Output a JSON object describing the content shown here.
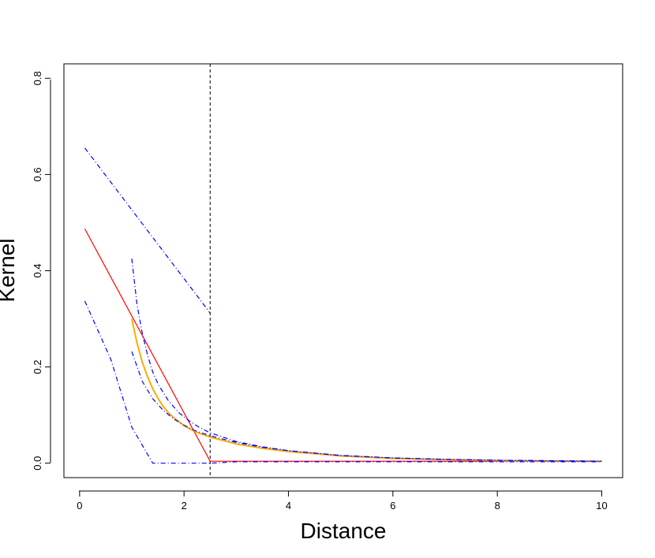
{
  "chart_data": {
    "type": "line",
    "title": "",
    "xlabel": "Distance",
    "ylabel": "Kernel",
    "xlim": [
      -0.3,
      10.4
    ],
    "ylim": [
      -0.03,
      0.83
    ],
    "xticks": [
      0,
      2,
      4,
      6,
      8,
      10
    ],
    "yticks": [
      0.0,
      0.2,
      0.4,
      0.6,
      0.8
    ],
    "xtick_labels": [
      "0",
      "2",
      "4",
      "6",
      "8",
      "10"
    ],
    "ytick_labels": [
      "0.0",
      "0.2",
      "0.4",
      "0.6",
      "0.8"
    ],
    "grid": false,
    "legend": "none",
    "vline": {
      "x": 2.5,
      "style": "dashed",
      "color": "#000000"
    },
    "series": [
      {
        "style": "solid",
        "color": "#ff0000",
        "x": [
          0.1,
          2.5,
          2.5,
          3,
          4,
          5,
          6,
          7,
          8,
          9,
          10
        ],
        "y": [
          0.487,
          0.004,
          0.004,
          0.004,
          0.004,
          0.004,
          0.004,
          0.004,
          0.004,
          0.004,
          0.004
        ]
      },
      {
        "style": "solid",
        "color": "#ffaa00",
        "x": [
          1.0,
          1.1,
          1.2,
          1.3,
          1.4,
          1.5,
          1.6,
          1.7,
          1.8,
          2.0,
          2.2,
          2.5,
          3,
          3.5,
          4,
          5,
          6,
          7,
          8,
          9,
          10
        ],
        "y": [
          0.3,
          0.25,
          0.21,
          0.18,
          0.155,
          0.135,
          0.118,
          0.105,
          0.095,
          0.078,
          0.066,
          0.054,
          0.04,
          0.031,
          0.024,
          0.015,
          0.01,
          0.0075,
          0.0055,
          0.0045,
          0.004
        ]
      },
      {
        "style": "dashdot",
        "color": "#0000ff",
        "x": [
          0.1,
          2.5
        ],
        "y": [
          0.655,
          0.312
        ]
      },
      {
        "style": "dashdot",
        "color": "#0000ff",
        "x": [
          0.1,
          0.6,
          1.0,
          1.4,
          2.0,
          2.5,
          3,
          4,
          5,
          6,
          7,
          8,
          9,
          10
        ],
        "y": [
          0.337,
          0.215,
          0.075,
          0.0,
          0.0,
          0.0,
          0.003,
          0.003,
          0.003,
          0.003,
          0.003,
          0.003,
          0.003,
          0.003
        ]
      },
      {
        "style": "dashdot",
        "color": "#0000ff",
        "x": [
          1.0,
          1.1,
          1.2,
          1.3,
          1.4,
          1.5,
          1.7,
          1.9,
          2.1,
          2.3,
          2.5,
          3,
          3.5,
          4,
          5,
          6,
          7,
          8,
          9,
          10
        ],
        "y": [
          0.425,
          0.33,
          0.27,
          0.225,
          0.19,
          0.165,
          0.13,
          0.105,
          0.088,
          0.074,
          0.063,
          0.045,
          0.034,
          0.026,
          0.016,
          0.011,
          0.008,
          0.006,
          0.005,
          0.004
        ]
      },
      {
        "style": "dashdot",
        "color": "#0000ff",
        "x": [
          1.0,
          1.2,
          1.4,
          1.6,
          1.8,
          2.0,
          2.2,
          2.5,
          3,
          3.5,
          4,
          5,
          6,
          7,
          8,
          9,
          10
        ],
        "y": [
          0.232,
          0.17,
          0.134,
          0.11,
          0.092,
          0.079,
          0.068,
          0.057,
          0.043,
          0.033,
          0.026,
          0.016,
          0.011,
          0.008,
          0.006,
          0.005,
          0.004
        ]
      }
    ]
  }
}
